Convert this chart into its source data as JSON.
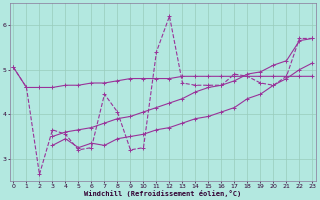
{
  "xlabel": "Windchill (Refroidissement éolien,°C)",
  "x": [
    0,
    1,
    2,
    3,
    4,
    5,
    6,
    7,
    8,
    9,
    10,
    11,
    12,
    13,
    14,
    15,
    16,
    17,
    18,
    19,
    20,
    21,
    22,
    23
  ],
  "line1_y": [
    5.05,
    4.6,
    4.6,
    4.6,
    4.65,
    4.65,
    4.7,
    4.7,
    4.75,
    4.8,
    4.8,
    4.8,
    4.8,
    4.85,
    4.85,
    4.85,
    4.85,
    4.85,
    4.85,
    4.85,
    4.85,
    4.85,
    4.85,
    4.85
  ],
  "line2_y": [
    5.05,
    4.6,
    2.65,
    3.65,
    3.55,
    3.2,
    3.25,
    4.45,
    4.05,
    3.2,
    3.25,
    5.4,
    6.2,
    4.7,
    4.65,
    4.65,
    4.65,
    4.9,
    4.85,
    4.7,
    4.65,
    4.85,
    5.7,
    5.7
  ],
  "line3_x": [
    3,
    4,
    5,
    6,
    7,
    8,
    9,
    10,
    11,
    12,
    13,
    14,
    15,
    16,
    17,
    18,
    19,
    20,
    21,
    22,
    23
  ],
  "line3_y": [
    3.3,
    3.45,
    3.25,
    3.35,
    3.3,
    3.45,
    3.5,
    3.55,
    3.65,
    3.7,
    3.8,
    3.9,
    3.95,
    4.05,
    4.15,
    4.35,
    4.45,
    4.65,
    4.8,
    5.0,
    5.15
  ],
  "line4_x": [
    3,
    4,
    5,
    6,
    7,
    8,
    9,
    10,
    11,
    12,
    13,
    14,
    15,
    16,
    17,
    18,
    19,
    20,
    21,
    22,
    23
  ],
  "line4_y": [
    3.5,
    3.6,
    3.65,
    3.7,
    3.8,
    3.9,
    3.95,
    4.05,
    4.15,
    4.25,
    4.35,
    4.5,
    4.6,
    4.65,
    4.75,
    4.9,
    4.95,
    5.1,
    5.2,
    5.65,
    5.7
  ],
  "line_color": "#993399",
  "bg_color": "#b3e8e0",
  "grid_color": "#99ccbb",
  "ylim": [
    2.5,
    6.5
  ],
  "xlim": [
    -0.3,
    23.3
  ],
  "yticks": [
    3,
    4,
    5,
    6
  ],
  "xticks": [
    0,
    1,
    2,
    3,
    4,
    5,
    6,
    7,
    8,
    9,
    10,
    11,
    12,
    13,
    14,
    15,
    16,
    17,
    18,
    19,
    20,
    21,
    22,
    23
  ]
}
